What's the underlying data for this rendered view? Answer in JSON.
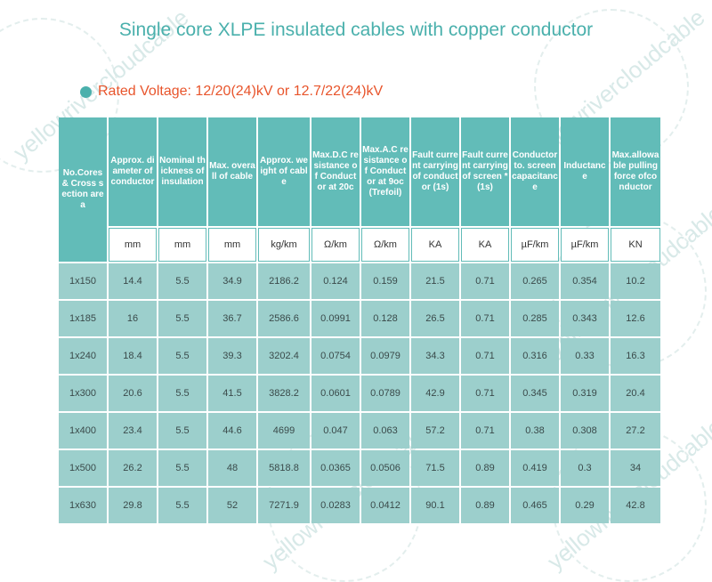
{
  "title": "Single core XLPE insulated cables with copper conductor",
  "rated_voltage": "Rated Voltage: 12/20(24)kV or 12.7/22(24)kV",
  "watermark": "yellowrivercloudcable",
  "colors": {
    "accent": "#4ab0ac",
    "header_bg": "#62bcb8",
    "row_bg": "#9ccfcc",
    "voltage_text": "#e8552c"
  },
  "table": {
    "headers": [
      "No.Cores & Cross section area",
      "Approx. diameter of conductor",
      "Nominal thickness of insulation",
      "Max. overall of cable",
      "Approx. weight of cable",
      "Max.D.C resistance of Conductor at 20c",
      "Max.A.C resistance of Conductor at 9oc (Trefoil)",
      "Fault current carrying of conductor (1s)",
      "Fault current carrying of screen * (1s)",
      "Conductor to. screen capacitance",
      "Inductance",
      "Max.allowable pulling force ofconductor"
    ],
    "units": [
      "mm",
      "mm",
      "mm",
      "kg/km",
      "Ω/km",
      "Ω/km",
      "KA",
      "KA",
      "µF/km",
      "µF/km",
      "KN"
    ],
    "rows": [
      [
        "1x150",
        "14.4",
        "5.5",
        "34.9",
        "2186.2",
        "0.124",
        "0.159",
        "21.5",
        "0.71",
        "0.265",
        "0.354",
        "10.2"
      ],
      [
        "1x185",
        "16",
        "5.5",
        "36.7",
        "2586.6",
        "0.0991",
        "0.128",
        "26.5",
        "0.71",
        "0.285",
        "0.343",
        "12.6"
      ],
      [
        "1x240",
        "18.4",
        "5.5",
        "39.3",
        "3202.4",
        "0.0754",
        "0.0979",
        "34.3",
        "0.71",
        "0.316",
        "0.33",
        "16.3"
      ],
      [
        "1x300",
        "20.6",
        "5.5",
        "41.5",
        "3828.2",
        "0.0601",
        "0.0789",
        "42.9",
        "0.71",
        "0.345",
        "0.319",
        "20.4"
      ],
      [
        "1x400",
        "23.4",
        "5.5",
        "44.6",
        "4699",
        "0.047",
        "0.063",
        "57.2",
        "0.71",
        "0.38",
        "0.308",
        "27.2"
      ],
      [
        "1x500",
        "26.2",
        "5.5",
        "48",
        "5818.8",
        "0.0365",
        "0.0506",
        "71.5",
        "0.89",
        "0.419",
        "0.3",
        "34"
      ],
      [
        "1x630",
        "29.8",
        "5.5",
        "52",
        "7271.9",
        "0.0283",
        "0.0412",
        "90.1",
        "0.89",
        "0.465",
        "0.29",
        "42.8"
      ]
    ]
  }
}
